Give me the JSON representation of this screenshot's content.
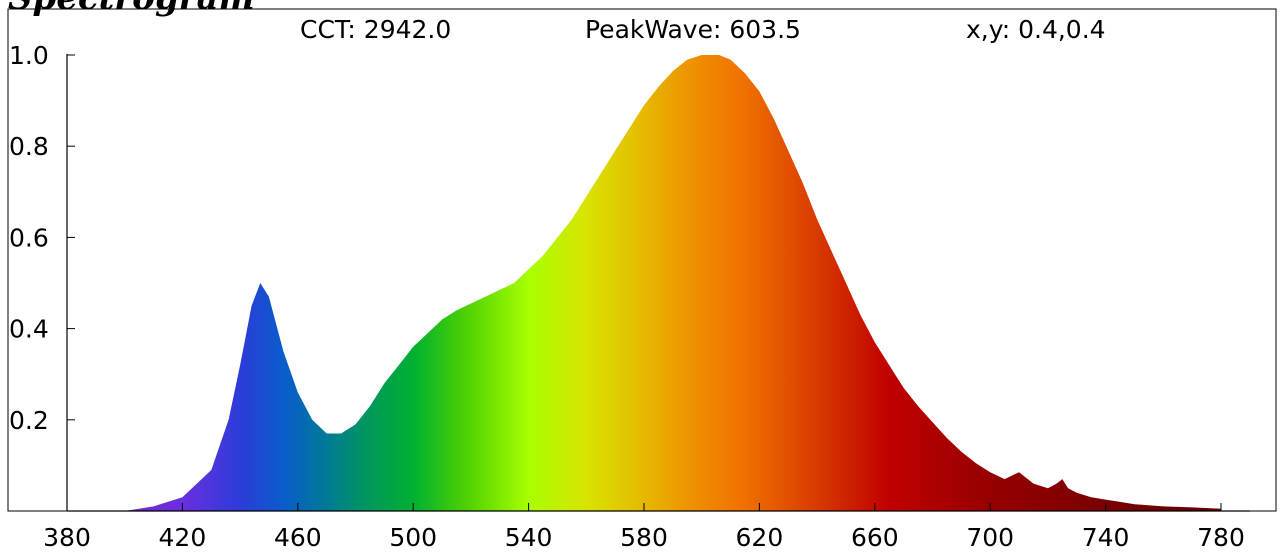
{
  "chart_data": {
    "type": "area",
    "title": "Spectrogram",
    "xlabel": "",
    "ylabel": "",
    "annotations": {
      "cct": "CCT: 2942.0",
      "peak": "PeakWave: 603.5",
      "xy": "x,y: 0.4,0.4"
    },
    "xlim": [
      380,
      780
    ],
    "ylim": [
      0,
      1.0
    ],
    "x_ticks": [
      380,
      420,
      460,
      500,
      540,
      580,
      620,
      660,
      700,
      740,
      780
    ],
    "y_ticks": [
      0.2,
      0.4,
      0.6,
      0.8,
      1.0
    ],
    "grid": false,
    "colormap": "visible-spectrum",
    "x": [
      400,
      410,
      420,
      430,
      436,
      440,
      444,
      447,
      450,
      455,
      460,
      465,
      470,
      475,
      480,
      485,
      490,
      495,
      500,
      505,
      510,
      515,
      520,
      525,
      530,
      535,
      540,
      545,
      550,
      555,
      560,
      565,
      570,
      575,
      580,
      585,
      590,
      595,
      600,
      603.5,
      606,
      610,
      615,
      620,
      625,
      630,
      635,
      640,
      645,
      650,
      655,
      660,
      665,
      670,
      675,
      680,
      685,
      690,
      695,
      700,
      705,
      710,
      715,
      720,
      723,
      725,
      727,
      730,
      735,
      740,
      745,
      750,
      760,
      770,
      780
    ],
    "values": [
      0.0,
      0.01,
      0.03,
      0.09,
      0.2,
      0.32,
      0.45,
      0.5,
      0.47,
      0.35,
      0.26,
      0.2,
      0.17,
      0.17,
      0.19,
      0.23,
      0.28,
      0.32,
      0.36,
      0.39,
      0.42,
      0.44,
      0.455,
      0.47,
      0.485,
      0.5,
      0.53,
      0.56,
      0.6,
      0.64,
      0.69,
      0.74,
      0.79,
      0.84,
      0.89,
      0.93,
      0.965,
      0.99,
      1.0,
      1.0,
      1.0,
      0.99,
      0.96,
      0.92,
      0.86,
      0.79,
      0.72,
      0.64,
      0.57,
      0.5,
      0.43,
      0.37,
      0.32,
      0.27,
      0.23,
      0.195,
      0.16,
      0.13,
      0.105,
      0.085,
      0.07,
      0.085,
      0.06,
      0.05,
      0.06,
      0.07,
      0.05,
      0.04,
      0.03,
      0.025,
      0.02,
      0.015,
      0.01,
      0.008,
      0.005
    ]
  }
}
